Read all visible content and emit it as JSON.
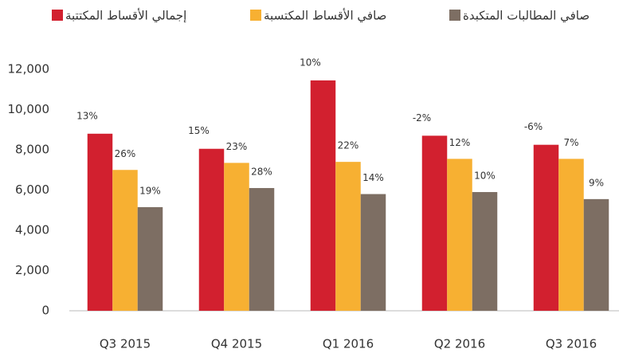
{
  "chart_data": {
    "type": "bar",
    "categories": [
      "Q3 2015",
      "Q4 2015",
      "Q1 2016",
      "Q2 2016",
      "Q3 2016"
    ],
    "series": [
      {
        "name": "إجمالي الأقساط المكتتبة",
        "color": "#d2202f",
        "values": [
          8800,
          8050,
          11450,
          8700,
          8250
        ],
        "labels": [
          "13%",
          "15%",
          "10%",
          "-2%",
          "-6%"
        ]
      },
      {
        "name": "صافي الأقساط المكتسبة",
        "color": "#f7b032",
        "values": [
          7000,
          7350,
          7400,
          7550,
          7550
        ],
        "labels": [
          "26%",
          "23%",
          "22%",
          "12%",
          "7%"
        ]
      },
      {
        "name": "صافي المطالبات المتكبدة",
        "color": "#7d6e63",
        "values": [
          5150,
          6100,
          5800,
          5900,
          5550
        ],
        "labels": [
          "19%",
          "28%",
          "14%",
          "10%",
          "9%"
        ]
      }
    ],
    "ylim": [
      0,
      12000
    ],
    "yticks": [
      0,
      {
        "value": 2000,
        "label": "2,000"
      },
      {
        "value": 4000,
        "label": "4,000"
      },
      {
        "value": 6000,
        "label": "6,000"
      },
      {
        "value": 8000,
        "label": "8,000"
      },
      {
        "value": 10000,
        "label": "10,000"
      },
      {
        "value": 12000,
        "label": "12,000"
      }
    ],
    "grid": false
  }
}
